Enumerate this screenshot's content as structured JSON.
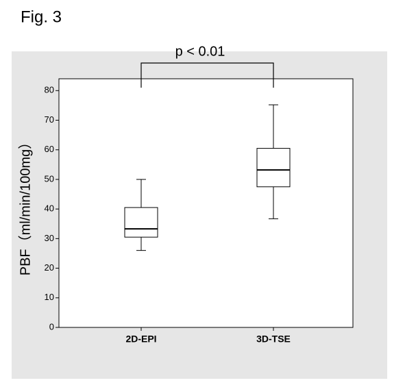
{
  "chart_data": {
    "type": "box",
    "figure_label": "Fig. 3",
    "y_label": "PBF（ml/min/100mg）",
    "annotation": "p < 0.01",
    "categories": [
      "2D-EPI",
      "3D-TSE"
    ],
    "min": [
      26,
      36.7
    ],
    "q1": [
      30.5,
      47.5
    ],
    "median": [
      33.3,
      53.2
    ],
    "q3": [
      40.5,
      60.5
    ],
    "max": [
      50,
      75.2
    ],
    "ylim": [
      0,
      84
    ],
    "yticks": [
      0,
      10,
      20,
      30,
      40,
      50,
      60,
      70,
      80
    ]
  }
}
